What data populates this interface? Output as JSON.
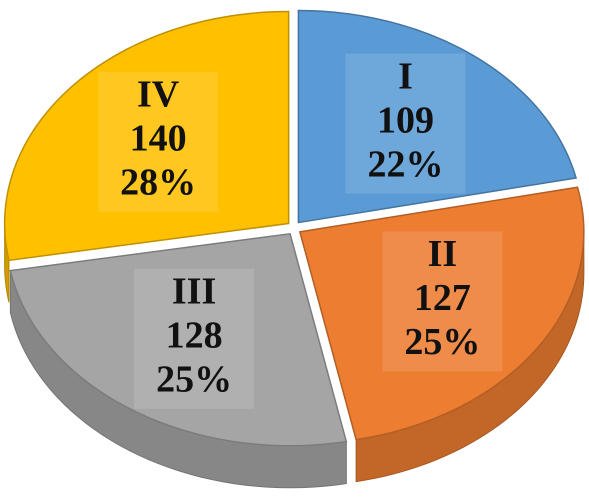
{
  "chart_data": {
    "type": "pie3d",
    "categories": [
      "I",
      "II",
      "III",
      "IV"
    ],
    "values": [
      109,
      127,
      128,
      140
    ],
    "percent_labels": [
      "22%",
      "25%",
      "25%",
      "28%"
    ],
    "colors": [
      "#5b9bd5",
      "#ed7d31",
      "#a5a5a5",
      "#ffc000"
    ]
  }
}
